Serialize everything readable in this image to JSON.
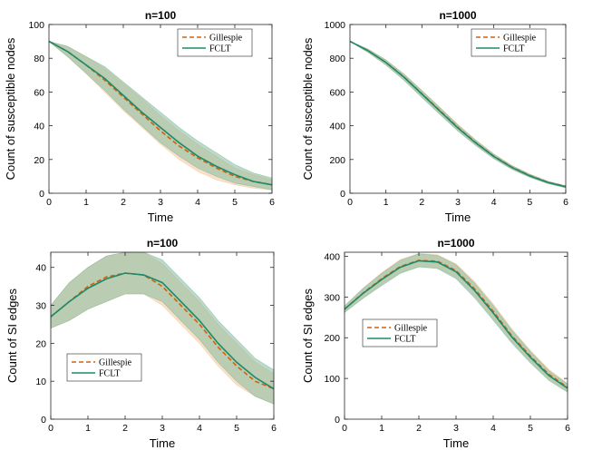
{
  "chart_data": [
    {
      "type": "line",
      "title": "n=100",
      "xlabel": "Time",
      "ylabel": "Count of susceptible nodes",
      "xlim": [
        0,
        6
      ],
      "ylim": [
        0,
        100
      ],
      "xticks": [
        "0",
        "1",
        "2",
        "3",
        "4",
        "5",
        "6"
      ],
      "yticks": [
        "0",
        "20",
        "40",
        "60",
        "80",
        "100"
      ],
      "legend_position": "top-right",
      "x": [
        0,
        0.5,
        1,
        1.5,
        2,
        2.5,
        3,
        3.5,
        4,
        4.5,
        5,
        5.5,
        6
      ],
      "series": [
        {
          "name": "Gillespie",
          "style": "dashed",
          "color": "#d95f02",
          "values": [
            90,
            84,
            76,
            67,
            57,
            47,
            37,
            28,
            21,
            15,
            10,
            7,
            5
          ],
          "band": [
            [
              90,
              90
            ],
            [
              81,
              87
            ],
            [
              71,
              81
            ],
            [
              60,
              74
            ],
            [
              49,
              65
            ],
            [
              39,
              56
            ],
            [
              29,
              46
            ],
            [
              20,
              37
            ],
            [
              13,
              29
            ],
            [
              8,
              22
            ],
            [
              5,
              15
            ],
            [
              3,
              11
            ],
            [
              2,
              8
            ]
          ]
        },
        {
          "name": "FCLT",
          "style": "solid",
          "color": "#1b8a6b",
          "values": [
            90,
            84,
            76,
            68,
            58,
            48,
            39,
            30,
            22,
            16,
            11,
            7,
            5
          ],
          "band": [
            [
              90,
              90
            ],
            [
              81,
              87
            ],
            [
              71,
              81
            ],
            [
              61,
              75
            ],
            [
              50,
              66
            ],
            [
              40,
              57
            ],
            [
              30,
              48
            ],
            [
              22,
              39
            ],
            [
              15,
              31
            ],
            [
              10,
              24
            ],
            [
              6,
              17
            ],
            [
              4,
              12
            ],
            [
              2,
              9
            ]
          ]
        }
      ]
    },
    {
      "type": "line",
      "title": "n=1000",
      "xlabel": "Time",
      "ylabel": "Count of susceptible nodes",
      "xlim": [
        0,
        6
      ],
      "ylim": [
        0,
        1000
      ],
      "xticks": [
        "0",
        "1",
        "2",
        "3",
        "4",
        "5",
        "6"
      ],
      "yticks": [
        "0",
        "200",
        "400",
        "600",
        "800",
        "1000"
      ],
      "legend_position": "top-right",
      "x": [
        0,
        0.5,
        1,
        1.5,
        2,
        2.5,
        3,
        3.5,
        4,
        4.5,
        5,
        5.5,
        6
      ],
      "series": [
        {
          "name": "Gillespie",
          "style": "dashed",
          "color": "#d95f02",
          "values": [
            900,
            845,
            775,
            690,
            590,
            490,
            390,
            300,
            220,
            155,
            105,
            65,
            40
          ],
          "band": [
            [
              900,
              900
            ],
            [
              835,
              855
            ],
            [
              760,
              790
            ],
            [
              672,
              708
            ],
            [
              570,
              610
            ],
            [
              470,
              510
            ],
            [
              372,
              408
            ],
            [
              284,
              316
            ],
            [
              207,
              233
            ],
            [
              144,
              166
            ],
            [
              96,
              114
            ],
            [
              58,
              72
            ],
            [
              34,
              46
            ]
          ]
        },
        {
          "name": "FCLT",
          "style": "solid",
          "color": "#1b8a6b",
          "values": [
            900,
            845,
            775,
            688,
            588,
            487,
            387,
            298,
            218,
            153,
            103,
            64,
            38
          ],
          "band": [
            [
              900,
              900
            ],
            [
              835,
              855
            ],
            [
              760,
              790
            ],
            [
              670,
              706
            ],
            [
              568,
              608
            ],
            [
              467,
              507
            ],
            [
              369,
              405
            ],
            [
              282,
              314
            ],
            [
              205,
              231
            ],
            [
              142,
              164
            ],
            [
              94,
              112
            ],
            [
              57,
              71
            ],
            [
              32,
              44
            ]
          ]
        }
      ]
    },
    {
      "type": "line",
      "title": "n=100",
      "xlabel": "Time",
      "ylabel": "Count of SI edges",
      "xlim": [
        0,
        6
      ],
      "ylim": [
        0,
        44
      ],
      "xticks": [
        "0",
        "1",
        "2",
        "3",
        "4",
        "5",
        "6"
      ],
      "yticks": [
        "0",
        "10",
        "20",
        "30",
        "40"
      ],
      "legend_position": "bottom-left",
      "x": [
        0,
        0.5,
        1,
        1.5,
        2,
        2.5,
        3,
        3.5,
        4,
        4.5,
        5,
        5.5,
        6
      ],
      "series": [
        {
          "name": "Gillespie",
          "style": "dashed",
          "color": "#d95f02",
          "values": [
            27,
            31,
            35,
            37.5,
            38.5,
            38,
            35,
            30,
            25,
            19,
            14,
            10,
            8
          ],
          "band": [
            [
              24,
              30
            ],
            [
              26,
              36
            ],
            [
              29,
              40
            ],
            [
              31,
              43
            ],
            [
              33,
              44
            ],
            [
              33,
              44
            ],
            [
              30,
              41
            ],
            [
              25,
              36
            ],
            [
              20,
              31
            ],
            [
              14,
              25
            ],
            [
              9,
              20
            ],
            [
              6,
              15
            ],
            [
              4,
              12
            ]
          ]
        },
        {
          "name": "FCLT",
          "style": "solid",
          "color": "#1b8a6b",
          "values": [
            27,
            31,
            34.5,
            37,
            38.5,
            38,
            36,
            31,
            26,
            20,
            15,
            11,
            8
          ],
          "band": [
            [
              24,
              30
            ],
            [
              26,
              36
            ],
            [
              29,
              40
            ],
            [
              31,
              43
            ],
            [
              33,
              44
            ],
            [
              33,
              44
            ],
            [
              31,
              42
            ],
            [
              26,
              37
            ],
            [
              21,
              32
            ],
            [
              15,
              26
            ],
            [
              10,
              21
            ],
            [
              6,
              16
            ],
            [
              4,
              13
            ]
          ]
        }
      ]
    },
    {
      "type": "line",
      "title": "n=1000",
      "xlabel": "Time",
      "ylabel": "Count of SI edges",
      "xlim": [
        0,
        6
      ],
      "ylim": [
        0,
        410
      ],
      "xticks": [
        "0",
        "1",
        "2",
        "3",
        "4",
        "5",
        "6"
      ],
      "yticks": [
        "0",
        "100",
        "200",
        "300",
        "400"
      ],
      "legend_position": "middle-left",
      "x": [
        0,
        0.5,
        1,
        1.5,
        2,
        2.5,
        3,
        3.5,
        4,
        4.5,
        5,
        5.5,
        6
      ],
      "series": [
        {
          "name": "Gillespie",
          "style": "dashed",
          "color": "#d95f02",
          "values": [
            270,
            310,
            345,
            375,
            390,
            388,
            365,
            320,
            265,
            205,
            155,
            110,
            78
          ],
          "band": [
            [
              262,
              278
            ],
            [
              298,
              322
            ],
            [
              330,
              360
            ],
            [
              360,
              392
            ],
            [
              375,
              407
            ],
            [
              372,
              404
            ],
            [
              348,
              382
            ],
            [
              302,
              338
            ],
            [
              247,
              283
            ],
            [
              190,
              222
            ],
            [
              141,
              169
            ],
            [
              98,
              122
            ],
            [
              68,
              88
            ]
          ]
        },
        {
          "name": "FCLT",
          "style": "solid",
          "color": "#1b8a6b",
          "values": [
            270,
            309,
            343,
            373,
            389,
            386,
            362,
            316,
            261,
            202,
            152,
            107,
            76
          ],
          "band": [
            [
              262,
              278
            ],
            [
              297,
              321
            ],
            [
              328,
              358
            ],
            [
              358,
              390
            ],
            [
              374,
              406
            ],
            [
              370,
              402
            ],
            [
              345,
              379
            ],
            [
              298,
              334
            ],
            [
              243,
              279
            ],
            [
              187,
              219
            ],
            [
              138,
              166
            ],
            [
              95,
              119
            ],
            [
              66,
              86
            ]
          ]
        }
      ]
    }
  ]
}
